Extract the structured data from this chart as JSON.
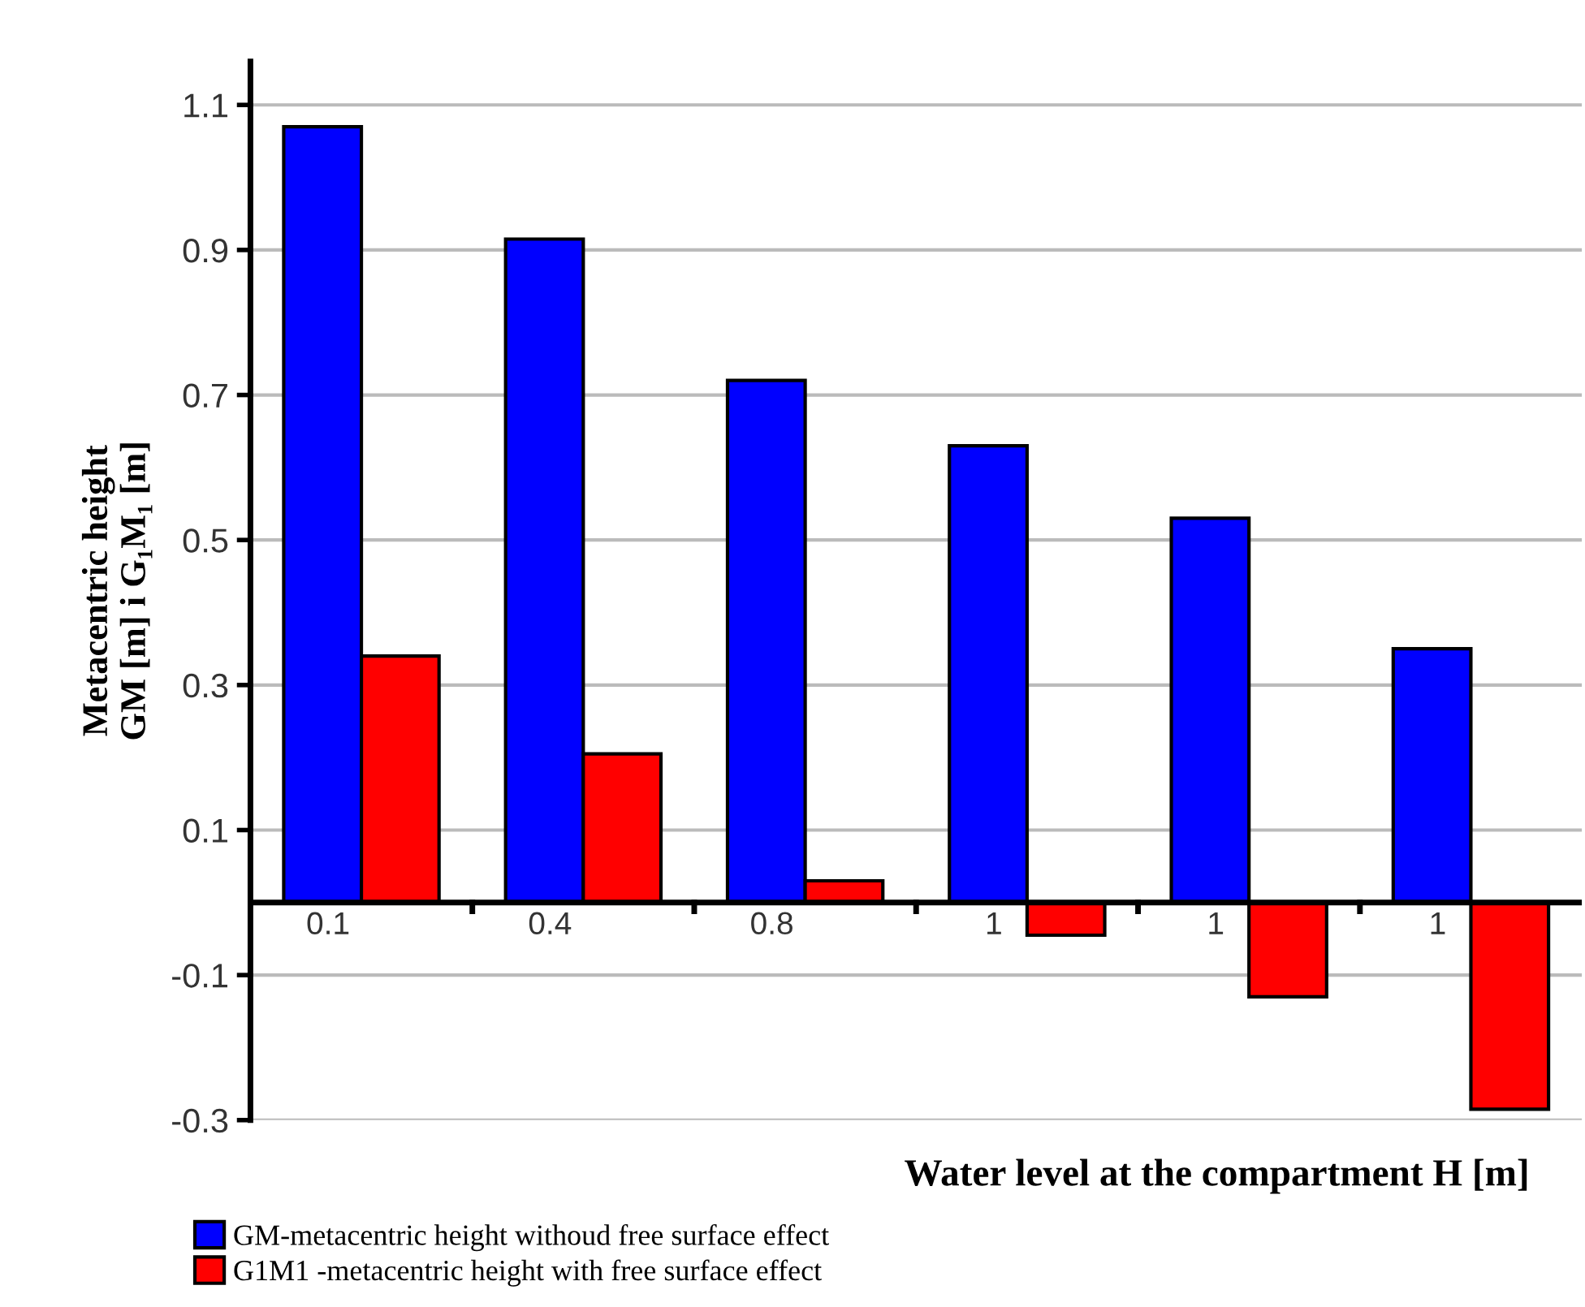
{
  "chart_data": {
    "type": "bar",
    "xlabel": "Water level at the compartment H [m]",
    "ylabel": "Metacentric height\nGM [m] i G₁M₁ [m]",
    "categories": [
      "0.1",
      "0.4",
      "0.8",
      "1",
      "1",
      "1"
    ],
    "series": [
      {
        "name": "GM-metacentric height withoud free surface effect",
        "color": "#0000ff",
        "values": [
          1.07,
          0.915,
          0.72,
          0.63,
          0.53,
          0.35
        ]
      },
      {
        "name": "G1M1 -metacentric height with free surface effect",
        "color": "#ff0000",
        "values": [
          0.34,
          0.205,
          0.03,
          -0.045,
          -0.13,
          -0.285
        ]
      }
    ],
    "ylim": [
      -0.3,
      1.16
    ],
    "yticks": [
      -0.3,
      -0.1,
      0.1,
      0.3,
      0.5,
      0.7,
      0.9,
      1.1
    ],
    "grid": "y",
    "legend": "bottom left"
  }
}
